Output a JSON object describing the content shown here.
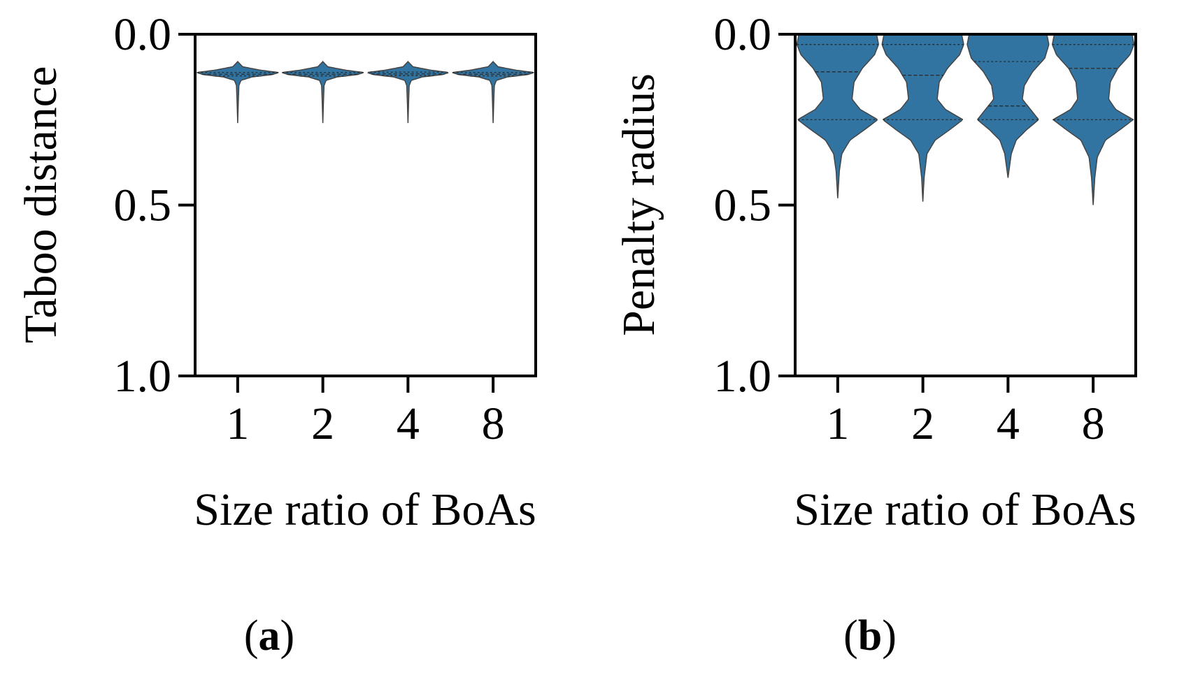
{
  "colors": {
    "violin_fill": "#3274a1",
    "violin_edge": "#444444",
    "axis": "#000000",
    "background": "#ffffff"
  },
  "chart_data": [
    {
      "type": "violin",
      "panel_label": "a",
      "xlabel": "Size ratio of BoAs",
      "ylabel": "Taboo distance",
      "categories": [
        "1",
        "2",
        "4",
        "8"
      ],
      "y_ticks": [
        "0.0",
        "0.5",
        "1.0"
      ],
      "ylim": [
        0.0,
        1.0
      ],
      "y_inverted": true,
      "violins": [
        {
          "category": "1",
          "min": 0.08,
          "max": 0.26,
          "quartiles": [
            0.112,
            0.117,
            0.122
          ],
          "density": [
            [
              0.08,
              0.0
            ],
            [
              0.095,
              0.12
            ],
            [
              0.105,
              0.55
            ],
            [
              0.112,
              1.0
            ],
            [
              0.118,
              0.85
            ],
            [
              0.125,
              0.35
            ],
            [
              0.135,
              0.08
            ],
            [
              0.15,
              0.03
            ],
            [
              0.2,
              0.015
            ],
            [
              0.26,
              0.0
            ]
          ]
        },
        {
          "category": "2",
          "min": 0.08,
          "max": 0.26,
          "quartiles": [
            0.112,
            0.117,
            0.122
          ],
          "density": [
            [
              0.08,
              0.0
            ],
            [
              0.095,
              0.12
            ],
            [
              0.105,
              0.55
            ],
            [
              0.112,
              1.0
            ],
            [
              0.118,
              0.85
            ],
            [
              0.125,
              0.35
            ],
            [
              0.135,
              0.08
            ],
            [
              0.15,
              0.03
            ],
            [
              0.2,
              0.015
            ],
            [
              0.26,
              0.0
            ]
          ]
        },
        {
          "category": "4",
          "min": 0.08,
          "max": 0.26,
          "quartiles": [
            0.111,
            0.116,
            0.121
          ],
          "density": [
            [
              0.08,
              0.0
            ],
            [
              0.095,
              0.12
            ],
            [
              0.105,
              0.55
            ],
            [
              0.112,
              1.0
            ],
            [
              0.118,
              0.85
            ],
            [
              0.125,
              0.35
            ],
            [
              0.135,
              0.08
            ],
            [
              0.15,
              0.03
            ],
            [
              0.2,
              0.015
            ],
            [
              0.26,
              0.0
            ]
          ]
        },
        {
          "category": "8",
          "min": 0.08,
          "max": 0.26,
          "quartiles": [
            0.112,
            0.117,
            0.122
          ],
          "density": [
            [
              0.08,
              0.0
            ],
            [
              0.095,
              0.12
            ],
            [
              0.105,
              0.55
            ],
            [
              0.112,
              1.0
            ],
            [
              0.118,
              0.85
            ],
            [
              0.125,
              0.35
            ],
            [
              0.135,
              0.08
            ],
            [
              0.15,
              0.03
            ],
            [
              0.2,
              0.015
            ],
            [
              0.26,
              0.0
            ]
          ]
        }
      ]
    },
    {
      "type": "violin",
      "panel_label": "b",
      "xlabel": "Size ratio of BoAs",
      "ylabel": "Penalty radius",
      "categories": [
        "1",
        "2",
        "4",
        "8"
      ],
      "y_ticks": [
        "0.0",
        "0.5",
        "1.0"
      ],
      "ylim": [
        0.0,
        1.0
      ],
      "y_inverted": true,
      "violins": [
        {
          "category": "1",
          "min": 0.0,
          "max": 0.48,
          "quartiles": [
            0.03,
            0.11,
            0.25
          ],
          "density": [
            [
              0.0,
              0.95
            ],
            [
              0.03,
              1.0
            ],
            [
              0.06,
              0.9
            ],
            [
              0.1,
              0.6
            ],
            [
              0.14,
              0.4
            ],
            [
              0.19,
              0.35
            ],
            [
              0.22,
              0.55
            ],
            [
              0.25,
              0.98
            ],
            [
              0.28,
              0.65
            ],
            [
              0.31,
              0.3
            ],
            [
              0.35,
              0.1
            ],
            [
              0.4,
              0.04
            ],
            [
              0.48,
              0.0
            ]
          ]
        },
        {
          "category": "2",
          "min": 0.0,
          "max": 0.49,
          "quartiles": [
            0.03,
            0.12,
            0.25
          ],
          "density": [
            [
              0.0,
              0.95
            ],
            [
              0.03,
              1.0
            ],
            [
              0.06,
              0.9
            ],
            [
              0.1,
              0.6
            ],
            [
              0.14,
              0.4
            ],
            [
              0.19,
              0.35
            ],
            [
              0.22,
              0.55
            ],
            [
              0.25,
              0.98
            ],
            [
              0.28,
              0.65
            ],
            [
              0.31,
              0.3
            ],
            [
              0.35,
              0.1
            ],
            [
              0.42,
              0.03
            ],
            [
              0.49,
              0.0
            ]
          ]
        },
        {
          "category": "4",
          "min": 0.0,
          "max": 0.42,
          "quartiles": [
            0.08,
            0.21,
            0.25
          ],
          "density": [
            [
              0.0,
              0.95
            ],
            [
              0.03,
              1.0
            ],
            [
              0.07,
              0.9
            ],
            [
              0.11,
              0.6
            ],
            [
              0.15,
              0.4
            ],
            [
              0.19,
              0.35
            ],
            [
              0.22,
              0.55
            ],
            [
              0.25,
              0.75
            ],
            [
              0.28,
              0.45
            ],
            [
              0.31,
              0.2
            ],
            [
              0.35,
              0.08
            ],
            [
              0.42,
              0.0
            ]
          ]
        },
        {
          "category": "8",
          "min": 0.0,
          "max": 0.5,
          "quartiles": [
            0.03,
            0.1,
            0.25
          ],
          "density": [
            [
              0.0,
              0.95
            ],
            [
              0.03,
              1.0
            ],
            [
              0.06,
              0.9
            ],
            [
              0.1,
              0.6
            ],
            [
              0.14,
              0.42
            ],
            [
              0.19,
              0.38
            ],
            [
              0.22,
              0.55
            ],
            [
              0.25,
              0.98
            ],
            [
              0.28,
              0.65
            ],
            [
              0.31,
              0.3
            ],
            [
              0.36,
              0.1
            ],
            [
              0.42,
              0.04
            ],
            [
              0.5,
              0.0
            ]
          ]
        }
      ]
    }
  ]
}
